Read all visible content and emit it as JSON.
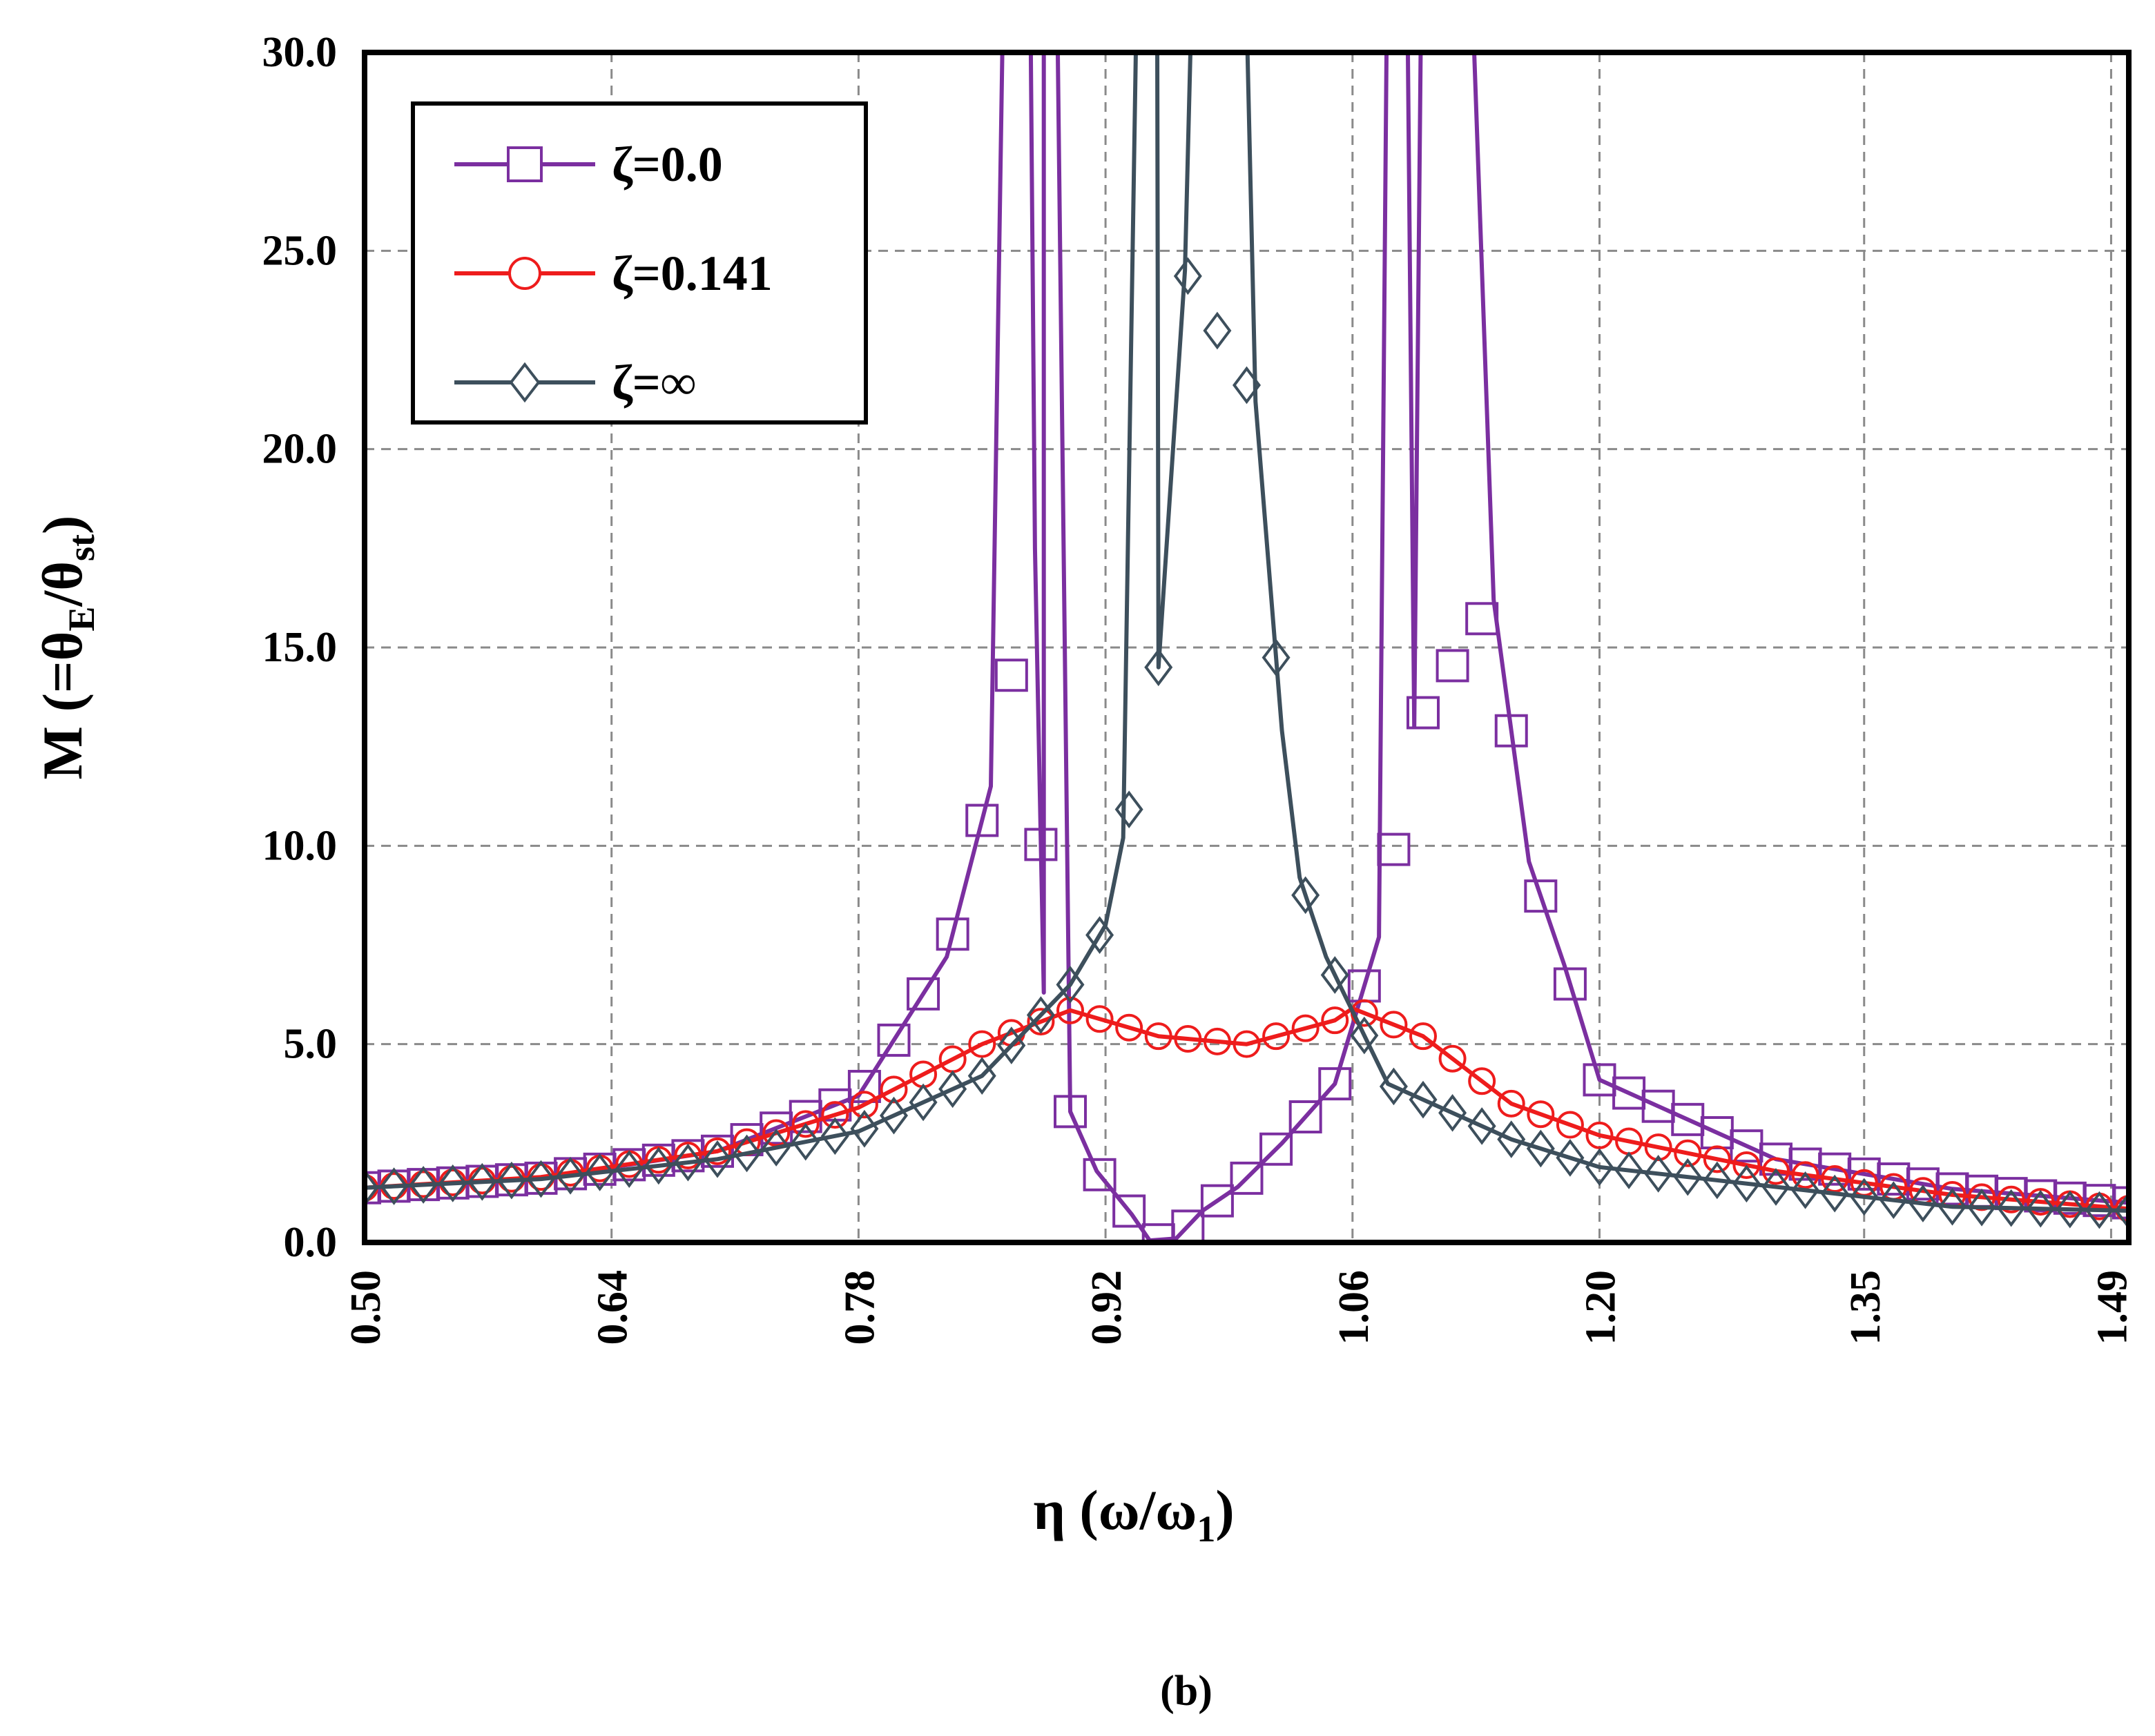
{
  "figure": {
    "caption": "(b)"
  },
  "chart_data": {
    "type": "line",
    "xlabel": "η (ω/ω",
    "xlabel_sub": "1",
    "xlabel_tail": ")",
    "ylabel": "M (=θ",
    "ylabel_sub1": "E",
    "ylabel_mid": "/θ",
    "ylabel_sub2": "st",
    "ylabel_tail": ")",
    "xlim": [
      0.5,
      1.5
    ],
    "ylim": [
      0,
      30
    ],
    "x_ticks": [
      "0.50",
      "0.64",
      "0.78",
      "0.92",
      "1.06",
      "1.20",
      "1.35",
      "1.49"
    ],
    "y_ticks": [
      "0.0",
      "5.0",
      "10.0",
      "15.0",
      "20.0",
      "25.0",
      "30.0"
    ],
    "grid": true,
    "legend_position": "top-left",
    "series": [
      {
        "name": "ζ=0.0",
        "color": "#7B2FA0",
        "marker": "square",
        "model": "undamped",
        "x_range": [
          0.5,
          1.5
        ],
        "points": [
          [
            0.5,
            1.38
          ],
          [
            0.6,
            1.62
          ],
          [
            0.7,
            2.3
          ],
          [
            0.78,
            3.7
          ],
          [
            0.83,
            7.2
          ],
          [
            0.855,
            11.5
          ],
          [
            0.88,
            17.5
          ],
          [
            0.885,
            6.3
          ],
          [
            0.9,
            3.3
          ],
          [
            0.915,
            1.8
          ],
          [
            0.935,
            0.7
          ],
          [
            0.945,
            0.05
          ],
          [
            0.96,
            0.1
          ],
          [
            0.975,
            0.8
          ],
          [
            0.995,
            1.4
          ],
          [
            1.02,
            2.5
          ],
          [
            1.05,
            4.0
          ],
          [
            1.075,
            7.7
          ],
          [
            1.095,
            13.0
          ],
          [
            1.14,
            16.2
          ],
          [
            1.16,
            9.6
          ],
          [
            1.18,
            7.0
          ],
          [
            1.2,
            4.1
          ],
          [
            1.3,
            2.1
          ],
          [
            1.4,
            1.35
          ],
          [
            1.5,
            1.0
          ]
        ]
      },
      {
        "name": "ζ=0.141",
        "color": "#EE1C1C",
        "marker": "circle",
        "model": "damped",
        "x_range": [
          0.5,
          1.5
        ],
        "points": [
          [
            0.5,
            1.38
          ],
          [
            0.6,
            1.65
          ],
          [
            0.7,
            2.3
          ],
          [
            0.78,
            3.4
          ],
          [
            0.85,
            5.0
          ],
          [
            0.9,
            5.85
          ],
          [
            0.95,
            5.2
          ],
          [
            1.0,
            5.0
          ],
          [
            1.05,
            5.6
          ],
          [
            1.06,
            5.9
          ],
          [
            1.1,
            5.2
          ],
          [
            1.15,
            3.5
          ],
          [
            1.2,
            2.7
          ],
          [
            1.3,
            1.8
          ],
          [
            1.4,
            1.2
          ],
          [
            1.5,
            0.85
          ]
        ]
      },
      {
        "name": "ζ=∞",
        "color": "#3D4F5C",
        "marker": "diamond",
        "model": "locked",
        "x_range": [
          0.5,
          1.5
        ],
        "points": [
          [
            0.5,
            1.38
          ],
          [
            0.6,
            1.6
          ],
          [
            0.7,
            2.1
          ],
          [
            0.78,
            2.8
          ],
          [
            0.85,
            4.2
          ],
          [
            0.9,
            6.5
          ],
          [
            0.92,
            8.0
          ],
          [
            0.93,
            10.2
          ],
          [
            0.95,
            14.5
          ],
          [
            0.965,
            24.5
          ],
          [
            1.005,
            21.2
          ],
          [
            1.02,
            12.9
          ],
          [
            1.03,
            9.2
          ],
          [
            1.045,
            7.2
          ],
          [
            1.08,
            4.0
          ],
          [
            1.15,
            2.6
          ],
          [
            1.2,
            1.9
          ],
          [
            1.3,
            1.4
          ],
          [
            1.4,
            0.9
          ],
          [
            1.5,
            0.8
          ]
        ]
      }
    ]
  }
}
